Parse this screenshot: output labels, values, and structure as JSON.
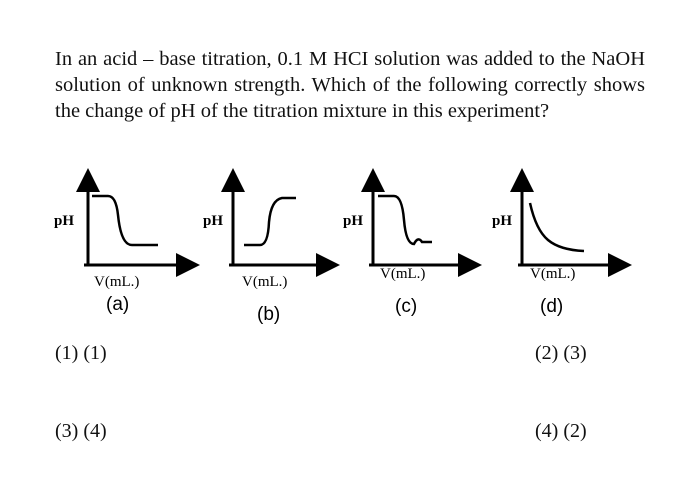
{
  "question": "In an acid – base titration, 0.1 M HCI solution was added to the NaOH solution of unknown strength. Which of the following correctly shows the change of pH of the titration mixture in this experiment?",
  "figures": [
    {
      "y_label": "pH",
      "x_label": "V(mL.)",
      "caption": "(a)"
    },
    {
      "y_label": "pH",
      "x_label": "V(mL.)",
      "caption": "(b)"
    },
    {
      "y_label": "pH",
      "x_label": "V(mL.)",
      "caption": "(c)"
    },
    {
      "y_label": "pH",
      "x_label": "V(mL.)",
      "caption": "(d)"
    }
  ],
  "options": [
    "(1) (1)",
    "(2) (3)",
    "(3) (4)",
    "(4) (2)"
  ]
}
